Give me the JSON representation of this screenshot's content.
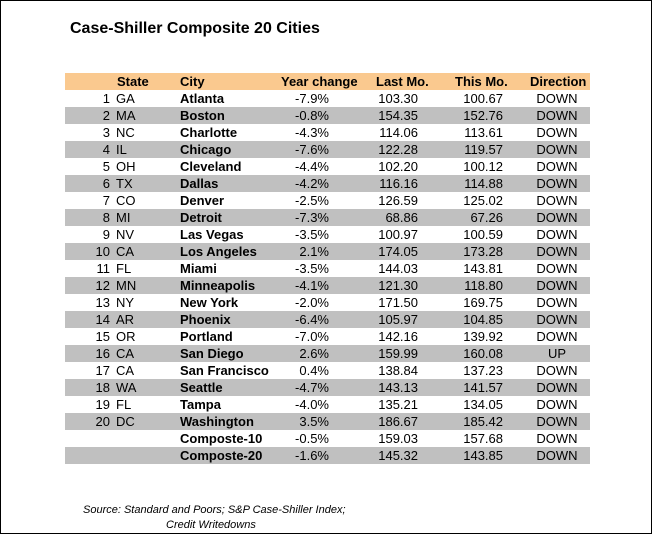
{
  "title": "Case-Shiller Composite 20 Cities",
  "headers": {
    "state": "State",
    "city": "City",
    "year_change": "Year change",
    "last_mo": "Last Mo.",
    "this_mo": "This Mo.",
    "direction": "Direction"
  },
  "rows": [
    {
      "num": "1",
      "state": "GA",
      "city": "Atlanta",
      "yc": "-7.9%",
      "lm": "103.30",
      "tm": "100.67",
      "dir": "DOWN"
    },
    {
      "num": "2",
      "state": "MA",
      "city": "Boston",
      "yc": "-0.8%",
      "lm": "154.35",
      "tm": "152.76",
      "dir": "DOWN"
    },
    {
      "num": "3",
      "state": "NC",
      "city": "Charlotte",
      "yc": "-4.3%",
      "lm": "114.06",
      "tm": "113.61",
      "dir": "DOWN"
    },
    {
      "num": "4",
      "state": "IL",
      "city": "Chicago",
      "yc": "-7.6%",
      "lm": "122.28",
      "tm": "119.57",
      "dir": "DOWN"
    },
    {
      "num": "5",
      "state": "OH",
      "city": "Cleveland",
      "yc": "-4.4%",
      "lm": "102.20",
      "tm": "100.12",
      "dir": "DOWN"
    },
    {
      "num": "6",
      "state": "TX",
      "city": "Dallas",
      "yc": "-4.2%",
      "lm": "116.16",
      "tm": "114.88",
      "dir": "DOWN"
    },
    {
      "num": "7",
      "state": "CO",
      "city": "Denver",
      "yc": "-2.5%",
      "lm": "126.59",
      "tm": "125.02",
      "dir": "DOWN"
    },
    {
      "num": "8",
      "state": "MI",
      "city": "Detroit",
      "yc": "-7.3%",
      "lm": "68.86",
      "tm": "67.26",
      "dir": "DOWN"
    },
    {
      "num": "9",
      "state": "NV",
      "city": "Las Vegas",
      "yc": "-3.5%",
      "lm": "100.97",
      "tm": "100.59",
      "dir": "DOWN"
    },
    {
      "num": "10",
      "state": "CA",
      "city": "Los Angeles",
      "yc": "2.1%",
      "lm": "174.05",
      "tm": "173.28",
      "dir": "DOWN"
    },
    {
      "num": "11",
      "state": "FL",
      "city": "Miami",
      "yc": "-3.5%",
      "lm": "144.03",
      "tm": "143.81",
      "dir": "DOWN"
    },
    {
      "num": "12",
      "state": "MN",
      "city": "Minneapolis",
      "yc": "-4.1%",
      "lm": "121.30",
      "tm": "118.80",
      "dir": "DOWN"
    },
    {
      "num": "13",
      "state": "NY",
      "city": "New York",
      "yc": "-2.0%",
      "lm": "171.50",
      "tm": "169.75",
      "dir": "DOWN"
    },
    {
      "num": "14",
      "state": "AR",
      "city": "Phoenix",
      "yc": "-6.4%",
      "lm": "105.97",
      "tm": "104.85",
      "dir": "DOWN"
    },
    {
      "num": "15",
      "state": "OR",
      "city": "Portland",
      "yc": "-7.0%",
      "lm": "142.16",
      "tm": "139.92",
      "dir": "DOWN"
    },
    {
      "num": "16",
      "state": "CA",
      "city": "San Diego",
      "yc": "2.6%",
      "lm": "159.99",
      "tm": "160.08",
      "dir": "UP"
    },
    {
      "num": "17",
      "state": "CA",
      "city": "San Francisco",
      "yc": "0.4%",
      "lm": "138.84",
      "tm": "137.23",
      "dir": "DOWN"
    },
    {
      "num": "18",
      "state": "WA",
      "city": "Seattle",
      "yc": "-4.7%",
      "lm": "143.13",
      "tm": "141.57",
      "dir": "DOWN"
    },
    {
      "num": "19",
      "state": "FL",
      "city": "Tampa",
      "yc": "-4.0%",
      "lm": "135.21",
      "tm": "134.05",
      "dir": "DOWN"
    },
    {
      "num": "20",
      "state": "DC",
      "city": "Washington",
      "yc": "3.5%",
      "lm": "186.67",
      "tm": "185.42",
      "dir": "DOWN"
    },
    {
      "num": "",
      "state": "",
      "city": "Composte-10",
      "yc": "-0.5%",
      "lm": "159.03",
      "tm": "157.68",
      "dir": "DOWN"
    },
    {
      "num": "",
      "state": "",
      "city": "Composte-20",
      "yc": "-1.6%",
      "lm": "145.32",
      "tm": "143.85",
      "dir": "DOWN"
    }
  ],
  "source_line1": "Source: Standard and Poors; S&P Case-Shiller Index;",
  "source_line2": "Credit Writedowns",
  "colors": {
    "header_bg": "#fac98f",
    "alt_row_bg": "#c0c0c0"
  }
}
